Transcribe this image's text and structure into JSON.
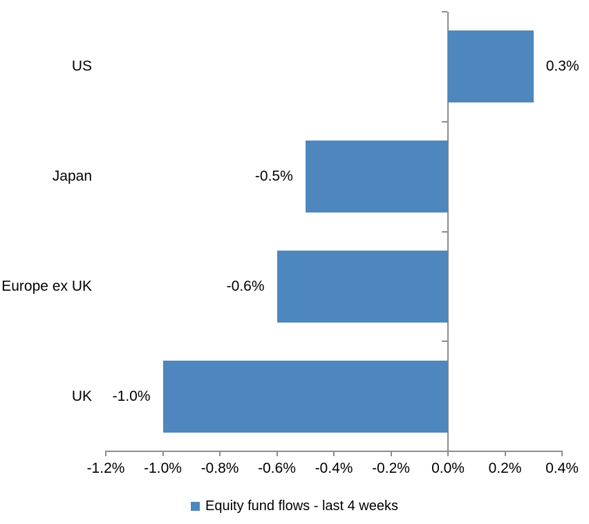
{
  "chart_data": {
    "type": "bar",
    "orientation": "horizontal",
    "title": "",
    "categories": [
      "US",
      "Japan",
      "Europe ex UK",
      "UK"
    ],
    "values": [
      0.3,
      -0.5,
      -0.6,
      -1.0
    ],
    "value_labels": [
      "0.3%",
      "-0.5%",
      "-0.6%",
      "-1.0%"
    ],
    "series_name": "Equity fund flows - last 4 weeks",
    "xlim": [
      -1.2,
      0.4
    ],
    "x_ticks": [
      -1.2,
      -1.0,
      -0.8,
      -0.6,
      -0.4,
      -0.2,
      0.0,
      0.2,
      0.4
    ],
    "x_tick_labels": [
      "-1.2%",
      "-1.0%",
      "-0.8%",
      "-0.6%",
      "-0.4%",
      "-0.2%",
      "0.0%",
      "0.2%",
      "0.4%"
    ],
    "bar_color": "#4E87BE",
    "axis_color": "#8C8C8C",
    "text_color": "#000000",
    "grid": false,
    "legend_position": "bottom"
  }
}
